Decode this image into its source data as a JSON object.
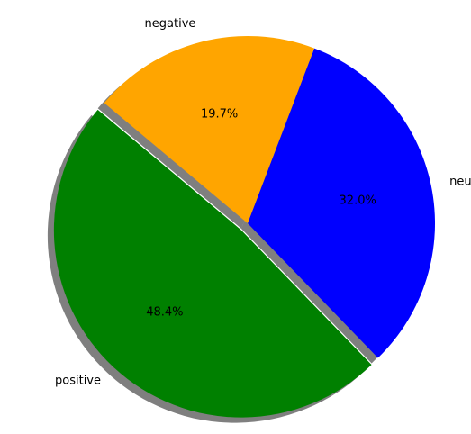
{
  "chart_data": {
    "type": "pie",
    "title": "",
    "autopct_format": "{:.1f}%",
    "shadow": true,
    "start_angle_deg": 140,
    "direction": "counterclockwise",
    "slices": [
      {
        "label": "positive",
        "value": 48.4,
        "percent_label": "48.4%",
        "color": "#008000",
        "explode": 0.05
      },
      {
        "label": "neutral",
        "value": 32.0,
        "percent_label": "32.0%",
        "color": "#0000ff",
        "explode": 0
      },
      {
        "label": "negative",
        "value": 19.7,
        "percent_label": "19.7%",
        "color": "#ffa500",
        "explode": 0
      }
    ]
  }
}
